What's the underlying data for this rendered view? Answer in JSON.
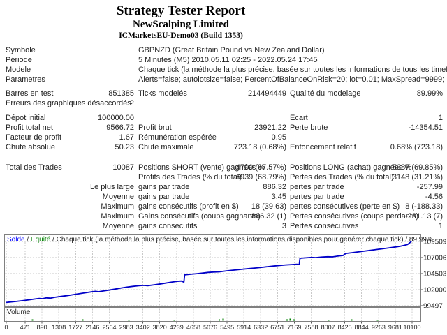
{
  "header": {
    "title": "Strategy Tester Report",
    "company": "NewScalping Limited",
    "server": "ICMarketsEU-Demo03 (Build 1353)"
  },
  "info_rows": [
    {
      "label": "Symbole",
      "value": "GBPNZD (Great Britain Pound vs New Zealand Dollar)"
    },
    {
      "label": "Période",
      "value": "5 Minutes (M5) 2010.05.11 02:25 - 2022.05.24 17:45"
    },
    {
      "label": "Modele",
      "value": "Chaque tick (la méthode la plus précise, basée sur toutes les informations de tous les timeframes)"
    },
    {
      "label": "Parametres",
      "value": "Alerts=false; autolotsize=false; PercentOfBalanceOnRisk=20; lot=0.01; MaxSpread=9999;"
    }
  ],
  "stats_rows": [
    {
      "c": [
        "Barres en test",
        "851385",
        "Ticks modelés",
        "214494449",
        "Qualité du modelage",
        "89.99%"
      ],
      "gap": ""
    },
    {
      "c": [
        "Erreurs des graphiques désaccordés",
        "2",
        "",
        "",
        "",
        ""
      ],
      "gap": ""
    },
    {
      "c": [
        "Dépot initial",
        "100000.00",
        "",
        "",
        "Ecart",
        "1"
      ],
      "gap": "md"
    },
    {
      "c": [
        "Profit total net",
        "9566.72",
        "Profit brut",
        "23921.22",
        "Perte brute",
        "-14354.51"
      ],
      "gap": ""
    },
    {
      "c": [
        "Facteur de profit",
        "1.67",
        "Rémunération espérée",
        "0.95",
        "",
        ""
      ],
      "gap": ""
    },
    {
      "c": [
        "Chute absolue",
        "50.23",
        "Chute maximale",
        "723.18 (0.68%)",
        "Enfoncement relatif",
        "0.68% (723.18)"
      ],
      "gap": ""
    },
    {
      "c": [
        "Total des Trades",
        "10087",
        "Positions SHORT (vente) gagnées %",
        "4700 (67.57%)",
        "Positions LONG (achat) gagnées %",
        "5387 (69.85%)"
      ],
      "gap": "lg"
    },
    {
      "c": [
        "",
        "",
        "Profits des Trades (% du total)",
        "6939 (68.79%)",
        "Pertes des Trades (% du total)",
        "3148 (31.21%)"
      ],
      "gap": ""
    },
    {
      "c": [
        "",
        "Le plus large",
        "gains par trade",
        "886.32",
        "pertes par trade",
        "-257.99"
      ],
      "gap": ""
    },
    {
      "c": [
        "",
        "Moyenne",
        "gains par trade",
        "3.45",
        "pertes par trade",
        "-4.56"
      ],
      "gap": ""
    },
    {
      "c": [
        "",
        "Maximum",
        "gains consécutifs (profit en $)",
        "18 (39.63)",
        "pertes consécutives (perte en $)",
        "8 (-188.33)"
      ],
      "gap": ""
    },
    {
      "c": [
        "",
        "Maximum",
        "Gains consécutifs (coups gagnants)",
        "886.32 (1)",
        "Pertes consécutives (coups perdants)",
        "-281.13 (7)"
      ],
      "gap": ""
    },
    {
      "c": [
        "",
        "Moyenne",
        "gains consécutifs",
        "3",
        "Pertes consécutives",
        "1"
      ],
      "gap": ""
    }
  ],
  "chart_data": {
    "type": "line",
    "legend": {
      "solde": "Solde",
      "sep": " / ",
      "equite": "Equité",
      "rest": "Chaque tick (la méthode la plus précise, basée sur toutes les informations disponibles pour générer chaque tick) / 89.99%"
    },
    "volume_label": "Volume",
    "xlabel": "",
    "ylabel": "",
    "ylim": [
      99497,
      109509
    ],
    "xlim": [
      0,
      10100
    ],
    "grid": true,
    "y_ticks": [
      99497,
      102000,
      104503,
      107006,
      109509
    ],
    "x_ticks": [
      0,
      471,
      890,
      1308,
      1727,
      2146,
      2564,
      2983,
      3402,
      3820,
      4239,
      4658,
      5076,
      5495,
      5914,
      6332,
      6751,
      7169,
      7588,
      8007,
      8425,
      8844,
      9263,
      9681,
      10100
    ],
    "colors": {
      "balance": "#0000C8",
      "solde": "#0000FF",
      "equite": "#008000",
      "volume_tick": "#008000"
    },
    "series": [
      {
        "name": "Solde",
        "points": [
          [
            0,
            100000
          ],
          [
            100,
            100070
          ],
          [
            250,
            100160
          ],
          [
            400,
            100270
          ],
          [
            550,
            100400
          ],
          [
            700,
            100530
          ],
          [
            820,
            100630
          ],
          [
            900,
            100590
          ],
          [
            1000,
            100720
          ],
          [
            1100,
            100670
          ],
          [
            1200,
            100800
          ],
          [
            1350,
            100930
          ],
          [
            1500,
            101050
          ],
          [
            1650,
            101200
          ],
          [
            1800,
            101350
          ],
          [
            1950,
            101500
          ],
          [
            2100,
            101640
          ],
          [
            2220,
            101740
          ],
          [
            2300,
            101670
          ],
          [
            2400,
            101780
          ],
          [
            2550,
            101920
          ],
          [
            2700,
            102080
          ],
          [
            2850,
            102240
          ],
          [
            3000,
            102390
          ],
          [
            3150,
            102510
          ],
          [
            3300,
            102610
          ],
          [
            3420,
            102660
          ],
          [
            3520,
            102620
          ],
          [
            3650,
            102720
          ],
          [
            3800,
            102850
          ],
          [
            3950,
            103000
          ],
          [
            4100,
            103150
          ],
          [
            4250,
            103290
          ],
          [
            4360,
            103340
          ],
          [
            4420,
            103160
          ],
          [
            4440,
            104300
          ],
          [
            4600,
            104400
          ],
          [
            4750,
            104490
          ],
          [
            4900,
            104590
          ],
          [
            5020,
            104690
          ],
          [
            5150,
            104740
          ],
          [
            5300,
            104780
          ],
          [
            5450,
            104890
          ],
          [
            5600,
            105000
          ],
          [
            5750,
            105100
          ],
          [
            5900,
            105200
          ],
          [
            6050,
            105290
          ],
          [
            6200,
            105370
          ],
          [
            6350,
            105470
          ],
          [
            6500,
            105580
          ],
          [
            6650,
            105680
          ],
          [
            6800,
            105770
          ],
          [
            6950,
            105850
          ],
          [
            7100,
            105910
          ],
          [
            7230,
            105950
          ],
          [
            7290,
            105910
          ],
          [
            7310,
            106900
          ],
          [
            7450,
            106960
          ],
          [
            7600,
            107030
          ],
          [
            7700,
            107000
          ],
          [
            7850,
            107080
          ],
          [
            8000,
            107140
          ],
          [
            8120,
            107120
          ],
          [
            8250,
            107230
          ],
          [
            8380,
            107330
          ],
          [
            8450,
            107650
          ],
          [
            8600,
            107760
          ],
          [
            8750,
            107880
          ],
          [
            8900,
            108000
          ],
          [
            9050,
            108120
          ],
          [
            9200,
            108250
          ],
          [
            9350,
            108370
          ],
          [
            9500,
            108490
          ],
          [
            9650,
            108620
          ],
          [
            9800,
            108760
          ],
          [
            9900,
            108900
          ],
          [
            9990,
            109050
          ],
          [
            10050,
            109350
          ],
          [
            10087,
            109560
          ]
        ]
      }
    ],
    "volume_ticks": [
      [
        650,
        2
      ],
      [
        1900,
        2
      ],
      [
        3050,
        1
      ],
      [
        4180,
        1
      ],
      [
        5300,
        2
      ],
      [
        5400,
        3
      ],
      [
        6990,
        2
      ],
      [
        7070,
        3
      ],
      [
        7160,
        2
      ],
      [
        8020,
        1
      ],
      [
        8600,
        2
      ],
      [
        9240,
        1
      ]
    ]
  }
}
